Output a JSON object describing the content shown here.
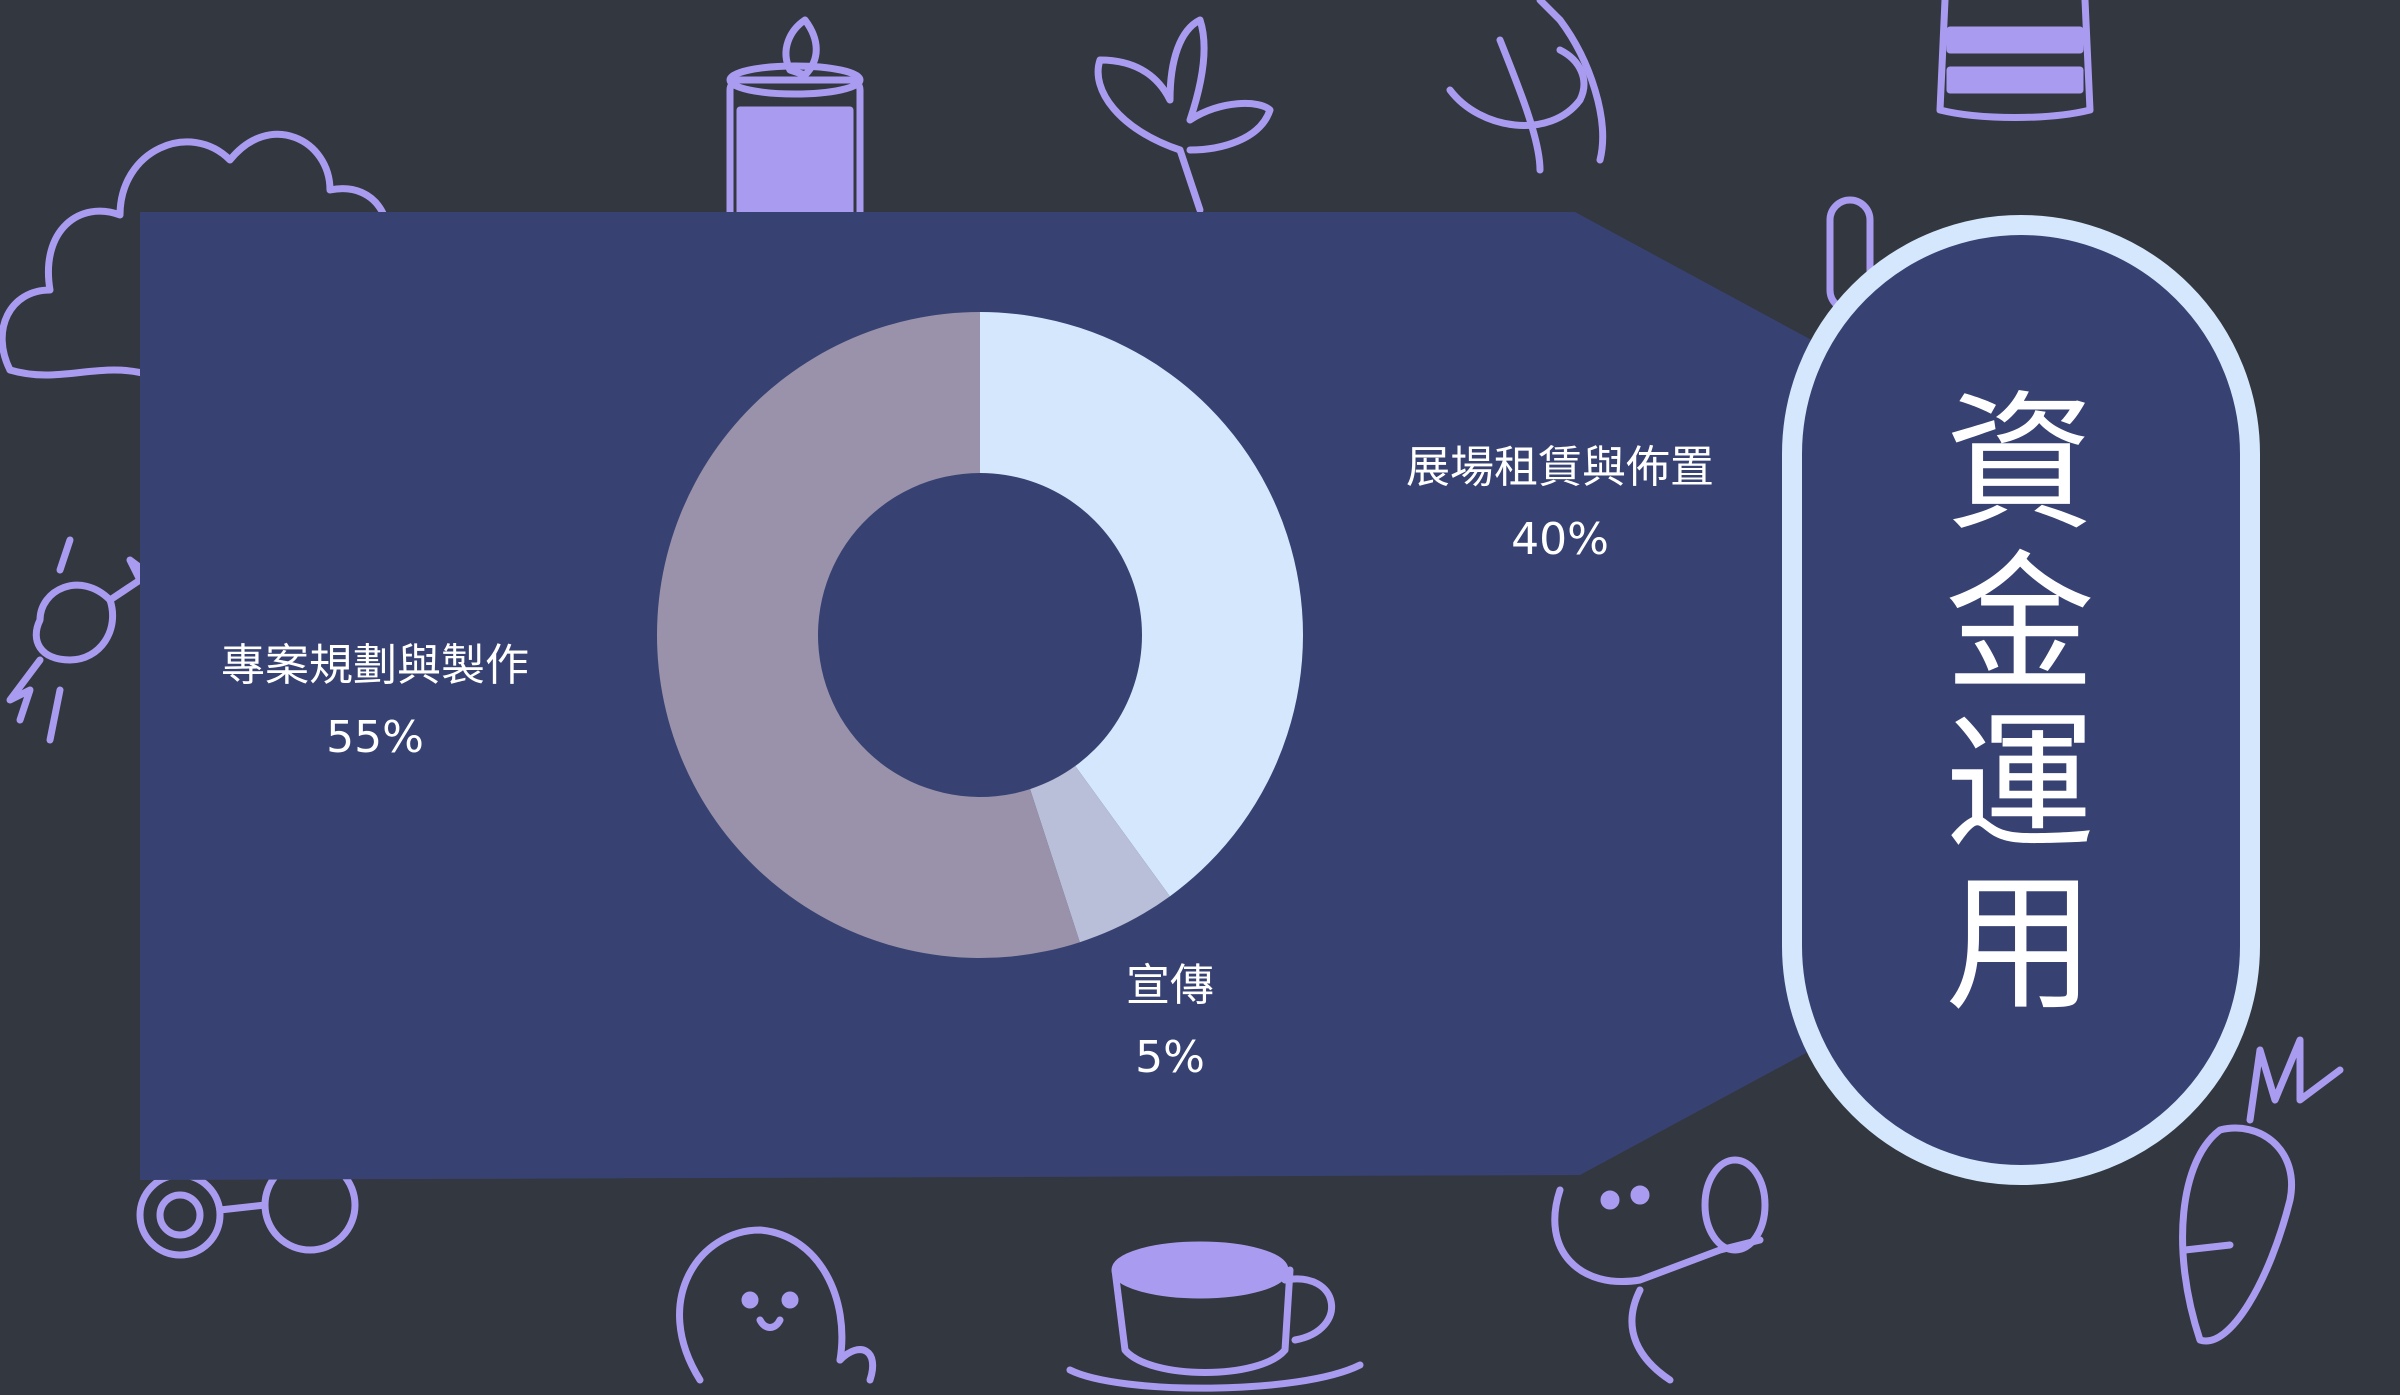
{
  "title": "資金運用",
  "chart_data": {
    "type": "donut",
    "segments": [
      {
        "label": "展場租賃與佈置",
        "value": 40,
        "display": "40%",
        "color": "#d5e7fd"
      },
      {
        "label": "宣傳",
        "value": 5,
        "display": "5%",
        "color": "#b9bfd8"
      },
      {
        "label": "專案規劃與製作",
        "value": 55,
        "display": "55%",
        "color": "#9a92aa"
      }
    ]
  },
  "colors": {
    "background": "#33373f",
    "panel": "#374273",
    "capsule_border": "#d5e7fd",
    "doodle": "#a99cf0"
  }
}
